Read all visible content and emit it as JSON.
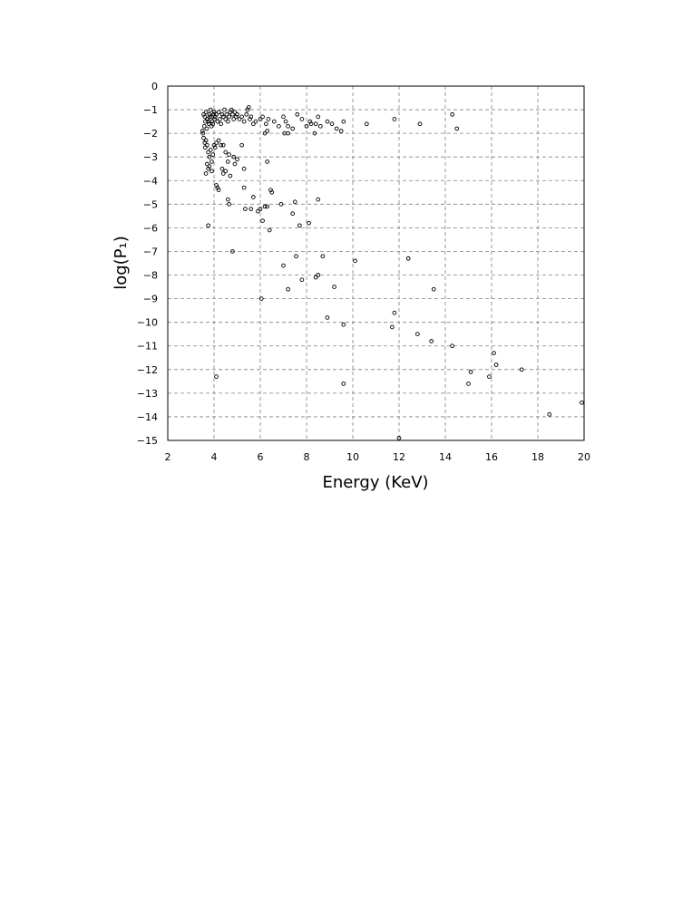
{
  "chart_data": {
    "type": "scatter",
    "title": "",
    "xlabel": "Energy (KeV)",
    "ylabel": "log(P₁)",
    "xlim": [
      2,
      20
    ],
    "ylim": [
      -15,
      0
    ],
    "xticks": [
      2,
      4,
      6,
      8,
      10,
      12,
      14,
      16,
      18,
      20
    ],
    "yticks": [
      0,
      -1,
      -2,
      -3,
      -4,
      -5,
      -6,
      -7,
      -8,
      -9,
      -10,
      -11,
      -12,
      -13,
      -14,
      -15
    ],
    "grid": true,
    "marker": "open-circle",
    "series": [
      {
        "points": [
          [
            3.55,
            -1.2
          ],
          [
            3.6,
            -1.3
          ],
          [
            3.65,
            -1.1
          ],
          [
            3.7,
            -1.4
          ],
          [
            3.75,
            -1.5
          ],
          [
            3.8,
            -1.2
          ],
          [
            3.85,
            -1.0
          ],
          [
            3.9,
            -1.3
          ],
          [
            3.95,
            -1.6
          ],
          [
            4.0,
            -1.1
          ],
          [
            3.58,
            -1.7
          ],
          [
            3.62,
            -1.5
          ],
          [
            3.68,
            -1.8
          ],
          [
            3.72,
            -1.4
          ],
          [
            3.78,
            -1.6
          ],
          [
            3.82,
            -1.3
          ],
          [
            3.88,
            -1.7
          ],
          [
            3.92,
            -1.5
          ],
          [
            3.98,
            -1.2
          ],
          [
            4.02,
            -1.4
          ],
          [
            4.05,
            -1.3
          ],
          [
            4.1,
            -1.2
          ],
          [
            4.15,
            -1.5
          ],
          [
            4.2,
            -1.1
          ],
          [
            4.25,
            -1.4
          ],
          [
            4.3,
            -1.6
          ],
          [
            4.35,
            -1.2
          ],
          [
            4.4,
            -1.3
          ],
          [
            4.45,
            -1.0
          ],
          [
            4.5,
            -1.4
          ],
          [
            4.55,
            -1.2
          ],
          [
            4.6,
            -1.5
          ],
          [
            4.65,
            -1.3
          ],
          [
            4.7,
            -1.1
          ],
          [
            4.75,
            -1.0
          ],
          [
            4.8,
            -1.2
          ],
          [
            4.85,
            -1.4
          ],
          [
            4.9,
            -1.1
          ],
          [
            4.95,
            -1.3
          ],
          [
            5.0,
            -1.2
          ],
          [
            5.1,
            -1.4
          ],
          [
            5.2,
            -1.3
          ],
          [
            5.3,
            -1.5
          ],
          [
            5.4,
            -1.2
          ],
          [
            5.45,
            -1.0
          ],
          [
            5.5,
            -0.9
          ],
          [
            5.55,
            -1.4
          ],
          [
            5.6,
            -1.3
          ],
          [
            5.7,
            -1.6
          ],
          [
            5.8,
            -1.5
          ],
          [
            3.5,
            -1.9
          ],
          [
            3.52,
            -2.0
          ],
          [
            3.55,
            -2.2
          ],
          [
            3.6,
            -2.4
          ],
          [
            3.62,
            -2.6
          ],
          [
            3.65,
            -2.3
          ],
          [
            3.7,
            -2.5
          ],
          [
            3.75,
            -2.8
          ],
          [
            3.8,
            -3.0
          ],
          [
            3.85,
            -2.7
          ],
          [
            3.9,
            -3.2
          ],
          [
            3.95,
            -2.9
          ],
          [
            4.0,
            -2.5
          ],
          [
            4.05,
            -2.6
          ],
          [
            4.1,
            -2.4
          ],
          [
            4.2,
            -2.3
          ],
          [
            4.3,
            -2.5
          ],
          [
            4.4,
            -2.5
          ],
          [
            4.5,
            -2.8
          ],
          [
            3.7,
            -3.3
          ],
          [
            3.75,
            -3.5
          ],
          [
            3.65,
            -3.7
          ],
          [
            3.8,
            -3.4
          ],
          [
            3.9,
            -3.6
          ],
          [
            4.35,
            -3.5
          ],
          [
            4.4,
            -3.7
          ],
          [
            4.5,
            -3.6
          ],
          [
            4.6,
            -3.2
          ],
          [
            4.65,
            -2.9
          ],
          [
            4.7,
            -3.8
          ],
          [
            4.85,
            -3.0
          ],
          [
            4.9,
            -3.3
          ],
          [
            5.0,
            -3.1
          ],
          [
            5.2,
            -2.5
          ],
          [
            5.3,
            -3.5
          ],
          [
            4.1,
            -4.2
          ],
          [
            4.15,
            -4.3
          ],
          [
            4.2,
            -4.4
          ],
          [
            4.6,
            -4.8
          ],
          [
            4.65,
            -5.0
          ],
          [
            5.3,
            -4.3
          ],
          [
            5.35,
            -5.2
          ],
          [
            5.6,
            -5.2
          ],
          [
            5.7,
            -4.7
          ],
          [
            5.9,
            -5.3
          ],
          [
            6.0,
            -5.2
          ],
          [
            6.1,
            -5.7
          ],
          [
            6.2,
            -5.1
          ],
          [
            6.3,
            -5.1
          ],
          [
            6.4,
            -6.1
          ],
          [
            6.45,
            -4.4
          ],
          [
            6.5,
            -4.5
          ],
          [
            6.9,
            -5.0
          ],
          [
            7.4,
            -5.4
          ],
          [
            7.5,
            -4.9
          ],
          [
            7.7,
            -5.9
          ],
          [
            8.1,
            -5.8
          ],
          [
            8.5,
            -4.8
          ],
          [
            4.8,
            -7.0
          ],
          [
            6.05,
            -9.0
          ],
          [
            6.3,
            -3.2
          ],
          [
            7.0,
            -7.6
          ],
          [
            7.2,
            -8.6
          ],
          [
            7.55,
            -7.2
          ],
          [
            7.8,
            -8.2
          ],
          [
            8.4,
            -8.1
          ],
          [
            8.5,
            -8.0
          ],
          [
            8.7,
            -7.2
          ],
          [
            8.9,
            -9.8
          ],
          [
            9.2,
            -8.5
          ],
          [
            9.6,
            -10.1
          ],
          [
            9.6,
            -12.6
          ],
          [
            10.1,
            -7.4
          ],
          [
            3.75,
            -5.9
          ],
          [
            4.1,
            -12.3
          ],
          [
            6.0,
            -1.4
          ],
          [
            6.1,
            -1.3
          ],
          [
            6.25,
            -1.6
          ],
          [
            6.35,
            -1.4
          ],
          [
            6.6,
            -1.5
          ],
          [
            6.2,
            -2.0
          ],
          [
            6.3,
            -1.9
          ],
          [
            6.8,
            -1.7
          ],
          [
            7.0,
            -1.3
          ],
          [
            7.1,
            -1.5
          ],
          [
            7.2,
            -1.7
          ],
          [
            7.4,
            -1.8
          ],
          [
            7.6,
            -1.2
          ],
          [
            7.8,
            -1.4
          ],
          [
            8.0,
            -1.7
          ],
          [
            7.05,
            -2.0
          ],
          [
            7.2,
            -2.0
          ],
          [
            8.15,
            -1.5
          ],
          [
            8.2,
            -1.6
          ],
          [
            8.35,
            -2.0
          ],
          [
            8.4,
            -1.6
          ],
          [
            8.5,
            -1.3
          ],
          [
            8.6,
            -1.7
          ],
          [
            8.9,
            -1.5
          ],
          [
            9.1,
            -1.6
          ],
          [
            9.3,
            -1.8
          ],
          [
            9.5,
            -1.9
          ],
          [
            9.6,
            -1.5
          ],
          [
            10.6,
            -1.6
          ],
          [
            11.8,
            -1.4
          ],
          [
            12.9,
            -1.6
          ],
          [
            14.3,
            -1.2
          ],
          [
            14.5,
            -1.8
          ],
          [
            11.7,
            -10.2
          ],
          [
            11.8,
            -9.6
          ],
          [
            12.0,
            -14.9
          ],
          [
            12.4,
            -7.3
          ],
          [
            12.8,
            -10.5
          ],
          [
            13.4,
            -10.8
          ],
          [
            13.5,
            -8.6
          ],
          [
            14.3,
            -11.0
          ],
          [
            15.0,
            -12.6
          ],
          [
            15.1,
            -12.1
          ],
          [
            15.9,
            -12.3
          ],
          [
            16.1,
            -11.3
          ],
          [
            16.2,
            -11.8
          ],
          [
            17.3,
            -12.0
          ],
          [
            18.5,
            -13.9
          ],
          [
            19.9,
            -13.4
          ]
        ]
      }
    ]
  }
}
